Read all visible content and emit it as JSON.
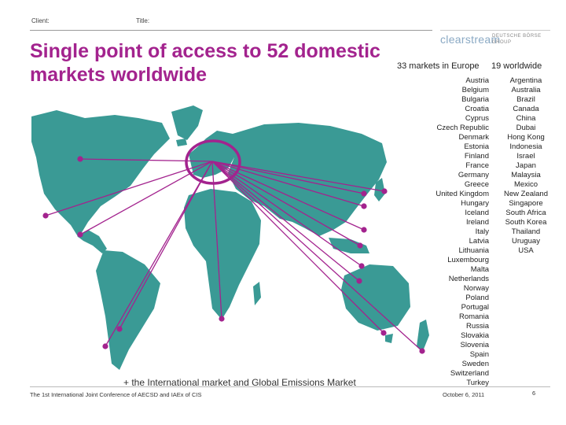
{
  "header": {
    "client_label": "Client:",
    "title_label": "Title:"
  },
  "slide": {
    "title": "Single point of access to 52 domestic markets worldwide"
  },
  "logo": {
    "brand": "clearstream",
    "group_line1": "DEUTSCHE BÖRSE",
    "group_line2": "GROUP"
  },
  "markets": {
    "europe_heading": "33 markets in Europe",
    "worldwide_heading": "19 worldwide",
    "europe": [
      "Austria",
      "Belgium",
      "Bulgaria",
      "Croatia",
      "Cyprus",
      "Czech Republic",
      "Denmark",
      "Estonia",
      "Finland",
      "France",
      "Germany",
      "Greece",
      "United Kingdom",
      "Hungary",
      "Iceland",
      "Ireland",
      "Italy",
      "Latvia",
      "Lithuania",
      "Luxembourg",
      "Malta",
      "Netherlands",
      "Norway",
      "Poland",
      "Portugal",
      "Romania",
      "Russia",
      "Slovakia",
      "Slovenia",
      "Spain",
      "Sweden",
      "Switzerland",
      "Turkey"
    ],
    "worldwide": [
      "Argentina",
      "Australia",
      "Brazil",
      "Canada",
      "China",
      "Dubai",
      "Hong Kong",
      "Indonesia",
      "Israel",
      "Japan",
      "Malaysia",
      "Mexico",
      "New Zealand",
      "Singapore",
      "South Africa",
      "South Korea",
      "Thailand",
      "Uruguay",
      "USA"
    ]
  },
  "note": "+ the International market and Global Emissions Market",
  "footer": {
    "conference": "The 1st International Joint Conference of AECSD and IAEx of CIS",
    "date": "October 6, 2011",
    "page": "6"
  },
  "colors": {
    "accent": "#a3238e",
    "map": "#3a9a95"
  }
}
